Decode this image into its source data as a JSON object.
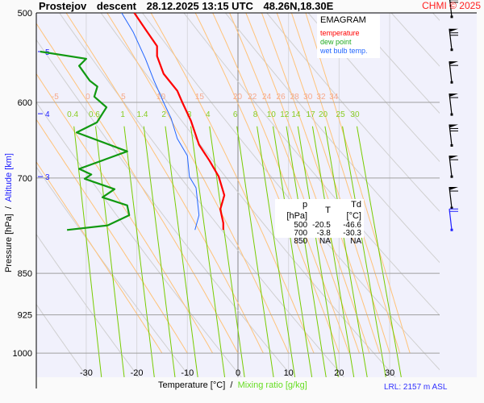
{
  "header": {
    "station": "Prostejov",
    "mode": "descent",
    "datetime": "28.12.2025 13:15 UTC",
    "coords": "48.26N,18.30E",
    "copyright": "CHMI © 2025"
  },
  "legend": {
    "title": "EMAGRAM",
    "items": [
      {
        "label": "temperature",
        "color": "#ff0000"
      },
      {
        "label": "dew point",
        "color": "#22aa22"
      },
      {
        "label": "wet bulb temp.",
        "color": "#2266ff"
      }
    ]
  },
  "table": {
    "headers": [
      "p [hPa]",
      "T",
      "Td [°C]"
    ],
    "rows": [
      [
        "500",
        "-20.5",
        "-46.6"
      ],
      [
        "700",
        "-3.8",
        "-30.3"
      ],
      [
        "850",
        "NA",
        "NA"
      ]
    ]
  },
  "footer": {
    "xlabel_temp": "Temperature [°C]",
    "xlabel_sep": "/",
    "xlabel_mr": "Mixing ratio [g/kg]",
    "ylabel_p": "Pressure [hPa]",
    "ylabel_sep": "/",
    "ylabel_alt": "Altitude [km]",
    "lrl": "LRL: 2157 m ASL"
  },
  "chart_data": {
    "type": "line",
    "title": "EMAGRAM",
    "xlabel": "Temperature [°C] / Mixing ratio [g/kg]",
    "ylabel": "Pressure [hPa] / Altitude [km]",
    "xlim": [
      -40,
      40
    ],
    "ylim_hpa": [
      1050,
      500
    ],
    "x_ticks": [
      -30,
      -20,
      -10,
      0,
      10,
      20,
      30
    ],
    "p_ticks": [
      500,
      600,
      700,
      850,
      925,
      1000
    ],
    "altitude_ticks": [
      {
        "km": 5,
        "p": 541
      },
      {
        "km": 4,
        "p": 614
      },
      {
        "km": 3,
        "p": 698
      }
    ],
    "moist_adiabat_labels": [
      -5,
      0,
      5,
      10,
      15,
      20,
      22,
      24,
      26,
      28,
      30,
      32,
      34
    ],
    "mixing_ratio_labels": [
      0.4,
      0.6,
      1,
      1.4,
      2,
      3,
      4,
      6,
      8,
      10,
      12,
      14,
      17,
      20,
      25,
      30
    ],
    "series": [
      {
        "name": "temperature",
        "color": "#ff0000",
        "p": [
          500,
          517,
          535,
          546,
          566,
          586,
          600,
          623,
          654,
          676,
          698,
          725,
          746,
          767,
          778
        ],
        "t": [
          -20.5,
          -18.3,
          -16.0,
          -16.0,
          -14.7,
          -12.0,
          -11.0,
          -9.3,
          -7.7,
          -5.6,
          -3.8,
          -2.7,
          -3.5,
          -2.9,
          -2.9
        ]
      },
      {
        "name": "dew point",
        "color": "#119911",
        "p": [
          541,
          549,
          557,
          574,
          581,
          593,
          606,
          625,
          638,
          663,
          674,
          687,
          695,
          701,
          716,
          728,
          740,
          755,
          771,
          778
        ],
        "t": [
          -39.1,
          -30.0,
          -31.4,
          -29.3,
          -27.8,
          -28.4,
          -26.0,
          -27.9,
          -31.9,
          -21.9,
          -26.3,
          -31.4,
          -29.0,
          -30.3,
          -24.4,
          -26.8,
          -21.9,
          -21.5,
          -25.8,
          -33.8
        ]
      },
      {
        "name": "wet bulb temp.",
        "color": "#2266ff",
        "p": [
          500,
          520,
          549,
          574,
          600,
          620,
          646,
          669,
          698,
          714,
          755,
          778
        ],
        "t": [
          -23.0,
          -20.7,
          -18.3,
          -16.6,
          -14.7,
          -13.2,
          -12.0,
          -10.0,
          -9.6,
          -8.3,
          -7.7,
          -8.5
        ]
      }
    ],
    "wind_barbs": [
      {
        "p": 504,
        "pennants": 1,
        "barbs": 2
      },
      {
        "p": 539,
        "pennants": 1,
        "barbs": 2
      },
      {
        "p": 576,
        "pennants": 1,
        "barbs": 1
      },
      {
        "p": 615,
        "pennants": 1,
        "barbs": 1
      },
      {
        "p": 655,
        "pennants": 1,
        "barbs": 2
      },
      {
        "p": 698,
        "pennants": 1,
        "barbs": 1
      },
      {
        "p": 744,
        "pennants": 1,
        "barbs": 1
      },
      {
        "p": 778,
        "pennants": 0,
        "barbs": 2,
        "color": "#2020ff"
      }
    ]
  }
}
